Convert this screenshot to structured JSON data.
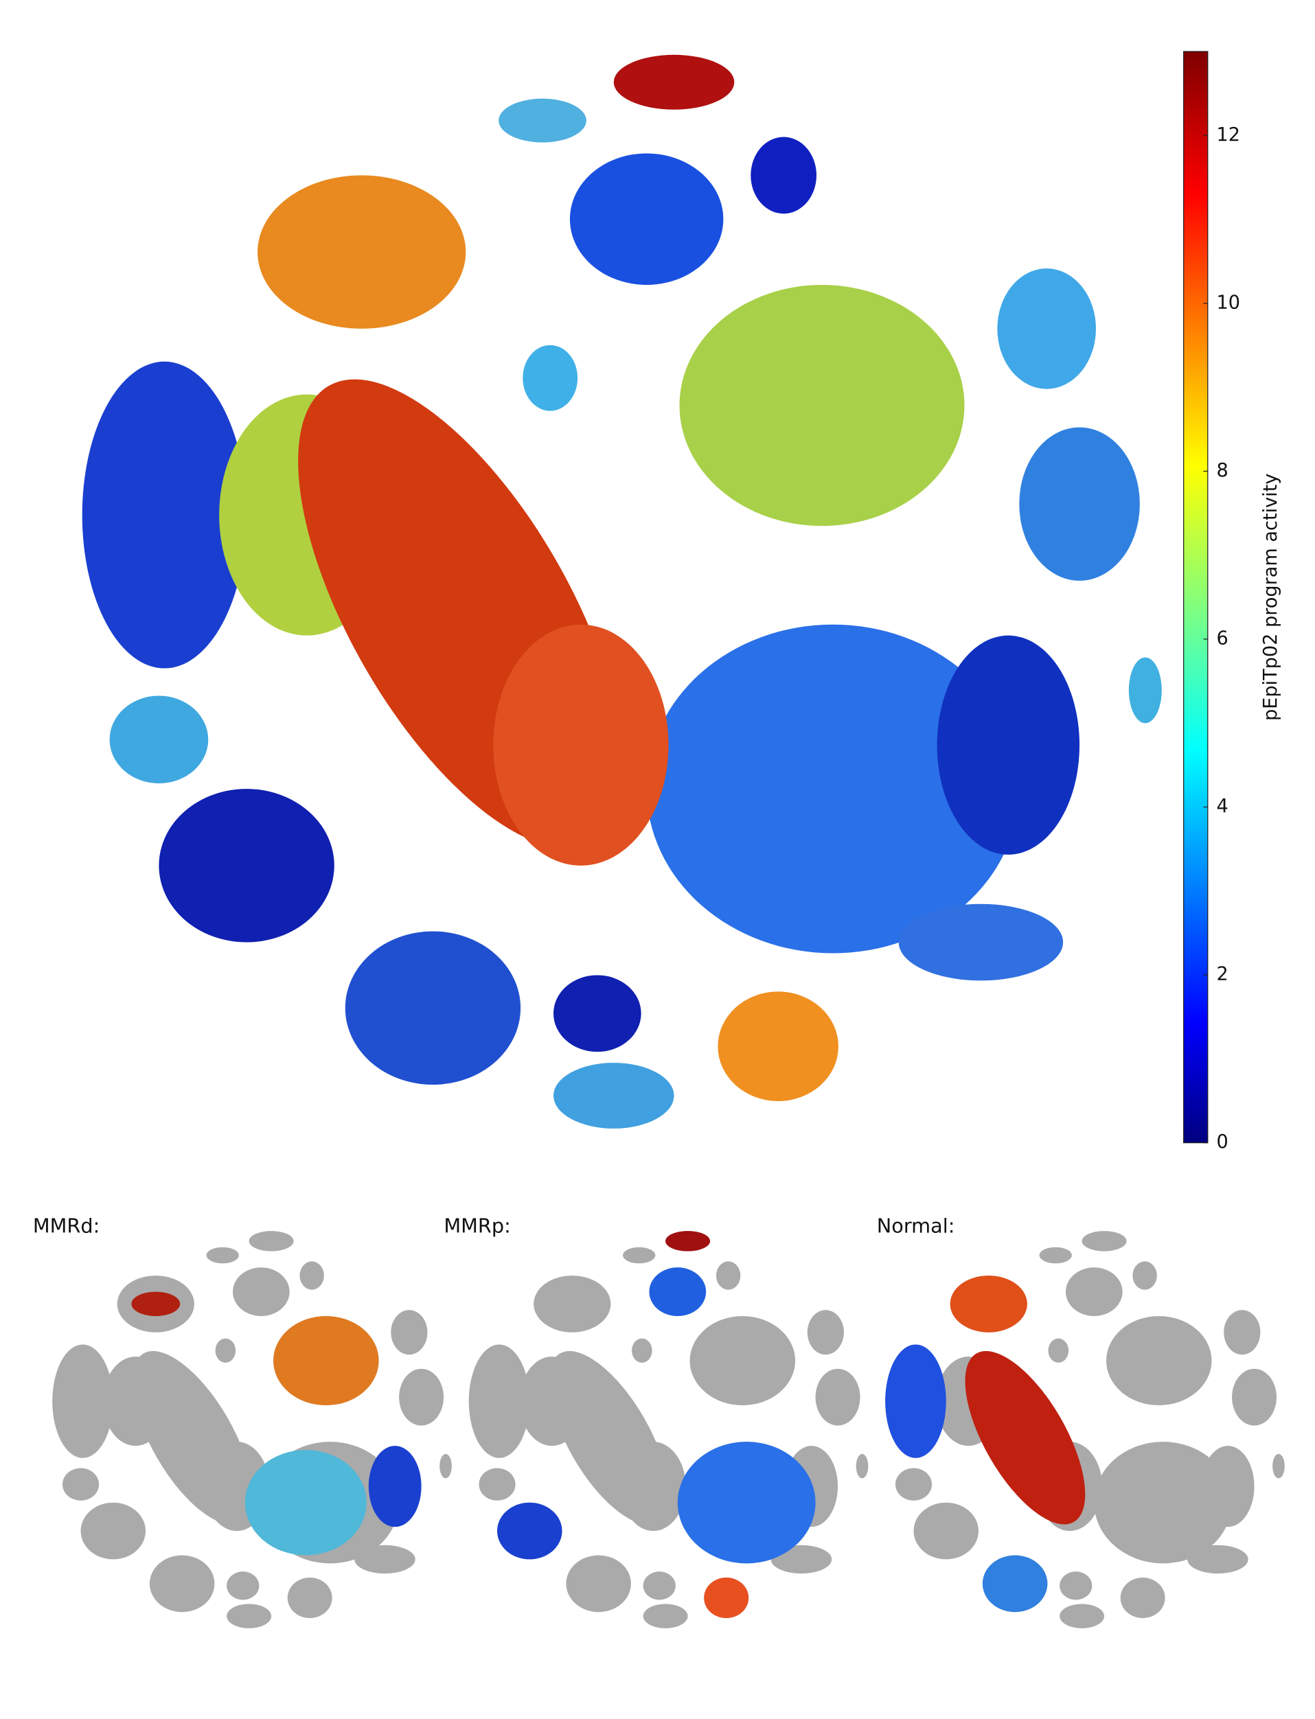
{
  "chart_data": {
    "type": "scatter",
    "colorbar_label": "pEpiTp02 program activity",
    "colormap": "jet",
    "clim": [
      0,
      13
    ],
    "cticks": [
      0,
      2,
      4,
      6,
      8,
      10,
      12
    ],
    "panels": [
      {
        "title": "MMRd:"
      },
      {
        "title": "MMRp:"
      },
      {
        "title": "Normal:"
      }
    ]
  }
}
